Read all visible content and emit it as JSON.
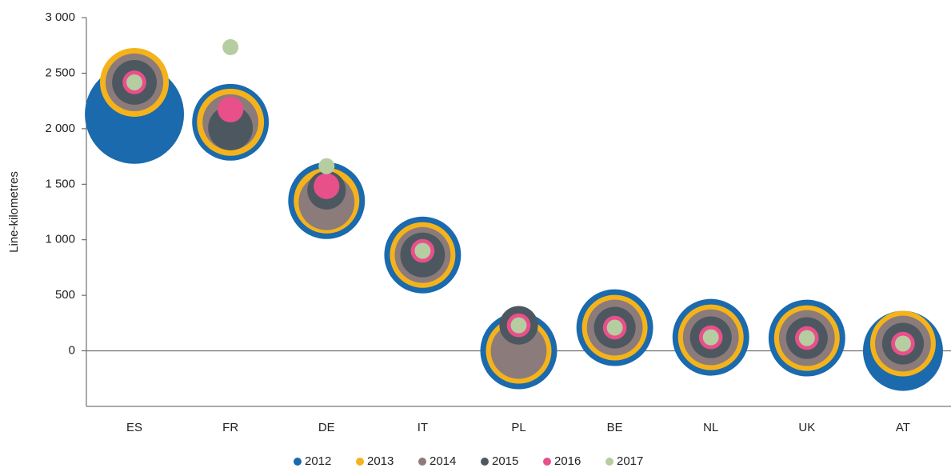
{
  "chart_data": {
    "type": "bubble",
    "y_label": "Line-kilometres",
    "categories": [
      "ES",
      "FR",
      "DE",
      "IT",
      "PL",
      "BE",
      "NL",
      "UK",
      "AT"
    ],
    "ylim": [
      -500,
      3000
    ],
    "yticks": [
      0,
      500,
      {
        "value": 1000,
        "label": "1 000"
      },
      {
        "value": 1500,
        "label": "1 500"
      },
      {
        "value": 2000,
        "label": "2 000"
      },
      {
        "value": 2500,
        "label": "2 500"
      },
      {
        "value": 3000,
        "label": "3 000"
      }
    ],
    "legend": "bottom",
    "series": [
      {
        "name": "2012",
        "color": "#1a6aad",
        "values": [
          2130,
          2058,
          1352,
          863,
          0,
          209,
          122,
          115,
          0
        ],
        "sizes": [
          384,
          230,
          230,
          230,
          230,
          230,
          230,
          230,
          250
        ]
      },
      {
        "name": "2013",
        "color": "#f5b31b",
        "values": [
          2417,
          2058,
          1352,
          863,
          0,
          209,
          122,
          115,
          65
        ],
        "sizes": [
          185,
          176,
          168,
          168,
          168,
          168,
          168,
          168,
          168
        ]
      },
      {
        "name": "2014",
        "color": "#8c7b7b",
        "values": [
          2417,
          2058,
          1338,
          863,
          0,
          209,
          122,
          115,
          65
        ],
        "sizes": [
          130,
          122,
          122,
          122,
          122,
          122,
          122,
          122,
          122
        ]
      },
      {
        "name": "2015",
        "color": "#4d5760",
        "values": [
          2417,
          2007,
          1446,
          863,
          230,
          209,
          122,
          115,
          65
        ],
        "sizes": [
          78,
          78,
          58,
          78,
          58,
          68,
          68,
          68,
          68
        ]
      },
      {
        "name": "2016",
        "color": "#e8508a",
        "values": [
          2417,
          2173,
          1482,
          900,
          230,
          209,
          122,
          115,
          65
        ],
        "sizes": [
          22,
          26,
          26,
          22,
          22,
          22,
          22,
          22,
          22
        ]
      },
      {
        "name": "2017",
        "color": "#b5cda0",
        "values": [
          2417,
          2734,
          1662,
          900,
          230,
          209,
          122,
          115,
          65
        ],
        "sizes": [
          10,
          10,
          10,
          10,
          10,
          10,
          10,
          10,
          10
        ]
      }
    ]
  }
}
